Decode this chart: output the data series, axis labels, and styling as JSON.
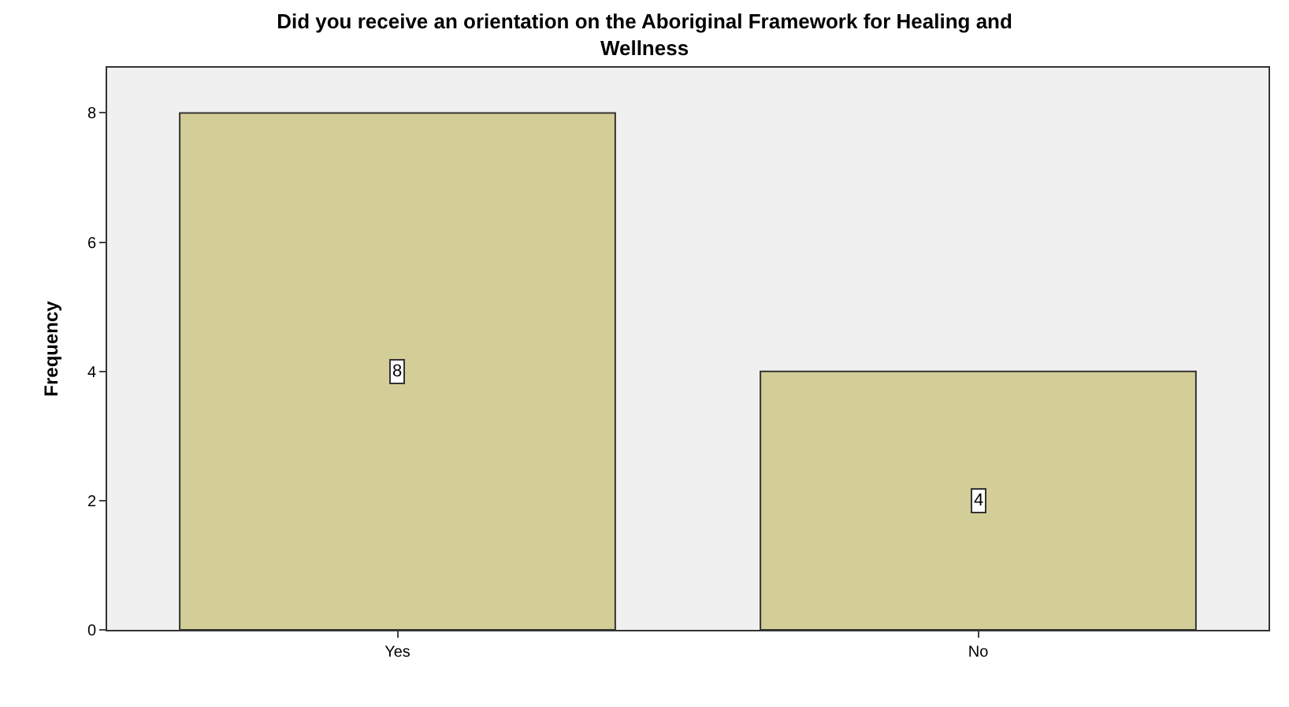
{
  "chart_data": {
    "type": "bar",
    "title": "Did you receive an orientation on the Aboriginal Framework for Healing and Wellness",
    "ylabel": "Frequency",
    "categories": [
      "Yes",
      "No"
    ],
    "values": [
      8,
      4
    ],
    "color": "#d3ce97",
    "ylim": [
      0,
      8.7
    ],
    "yticks": [
      0,
      2,
      4,
      6,
      8
    ],
    "grid": false,
    "data_labels": true
  }
}
